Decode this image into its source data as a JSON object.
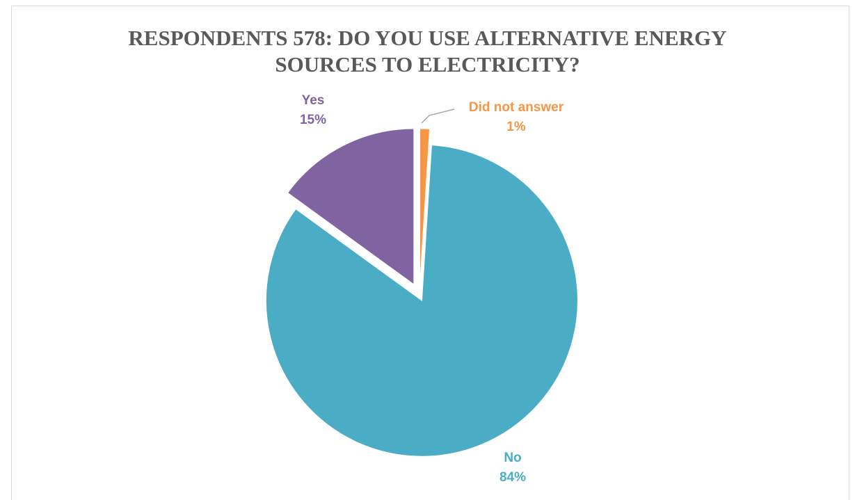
{
  "chart_data": {
    "type": "pie",
    "title_lines": [
      "RESPONDENTS 578: DO YOU USE ALTERNATIVE ENERGY",
      "SOURCES TO ELECTRICITY?"
    ],
    "start_angle_deg": 0,
    "direction": "clockwise",
    "slices": [
      {
        "label": "Did not answer",
        "value": 1,
        "display": "1%",
        "color": "#f79646",
        "exploded": true
      },
      {
        "label": "No",
        "value": 84,
        "display": "84%",
        "color": "#4bacc6",
        "exploded": true
      },
      {
        "label": "Yes",
        "value": 15,
        "display": "15%",
        "color": "#8064a2",
        "exploded": true
      }
    ],
    "legend": "none",
    "data_labels": "outside"
  }
}
